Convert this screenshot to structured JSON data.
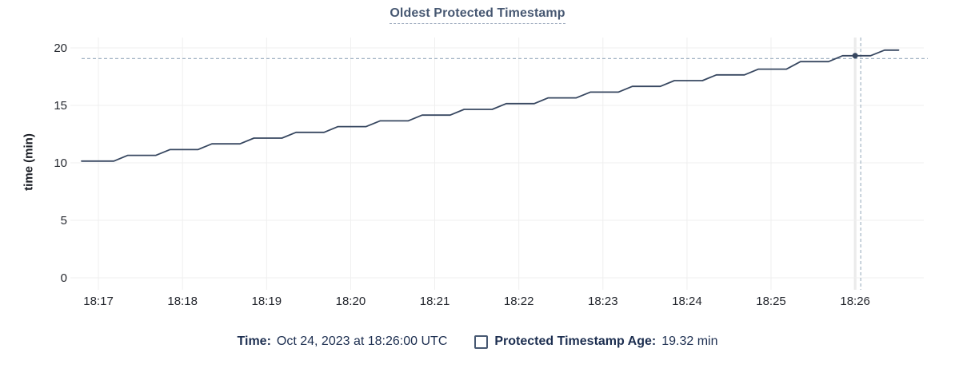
{
  "title": "Oldest Protected Timestamp",
  "y_axis_label": "time (min)",
  "legend": {
    "time_label": "Time:",
    "time_value": "Oct 24, 2023 at 18:26:00 UTC",
    "series_label": "Protected Timestamp Age:",
    "series_value": "19.32 min"
  },
  "colors": {
    "line": "#374760",
    "dot": "#374760",
    "crosshair": "#A3B4C4",
    "gridline": "#efefef",
    "gridline_highlight": "#e8e8e8",
    "tick_text": "#24272e",
    "title_text": "#475872",
    "legend_text": "#1c2e50",
    "checkbox_border": "#475872"
  },
  "chart_data": {
    "type": "line",
    "title": "Oldest Protected Timestamp",
    "xlabel": "",
    "ylabel": "time (min)",
    "x_unit": "seconds since 18:16:48 UTC",
    "xlim": [
      0,
      601
    ],
    "ylim": [
      0,
      20.9
    ],
    "grid": true,
    "yticks": [
      0,
      5,
      10,
      15,
      20
    ],
    "xticks": [
      {
        "t": 12,
        "label": "18:17"
      },
      {
        "t": 72,
        "label": "18:18"
      },
      {
        "t": 132,
        "label": "18:19"
      },
      {
        "t": 192,
        "label": "18:20"
      },
      {
        "t": 252,
        "label": "18:21"
      },
      {
        "t": 312,
        "label": "18:22"
      },
      {
        "t": 372,
        "label": "18:23"
      },
      {
        "t": 432,
        "label": "18:24"
      },
      {
        "t": 492,
        "label": "18:25"
      },
      {
        "t": 552,
        "label": "18:26",
        "highlight": true
      }
    ],
    "series": [
      {
        "name": "Protected Timestamp Age",
        "points": [
          [
            0,
            10.15
          ],
          [
            23,
            10.15
          ],
          [
            33,
            10.65
          ],
          [
            53,
            10.65
          ],
          [
            63,
            11.15
          ],
          [
            83,
            11.15
          ],
          [
            93,
            11.65
          ],
          [
            113,
            11.65
          ],
          [
            123,
            12.15
          ],
          [
            143,
            12.15
          ],
          [
            153,
            12.65
          ],
          [
            173,
            12.65
          ],
          [
            183,
            13.15
          ],
          [
            203,
            13.15
          ],
          [
            213,
            13.65
          ],
          [
            233,
            13.65
          ],
          [
            243,
            14.15
          ],
          [
            263,
            14.15
          ],
          [
            273,
            14.65
          ],
          [
            293,
            14.65
          ],
          [
            303,
            15.15
          ],
          [
            323,
            15.15
          ],
          [
            333,
            15.65
          ],
          [
            353,
            15.65
          ],
          [
            363,
            16.15
          ],
          [
            383,
            16.15
          ],
          [
            393,
            16.65
          ],
          [
            413,
            16.65
          ],
          [
            423,
            17.15
          ],
          [
            443,
            17.15
          ],
          [
            453,
            17.65
          ],
          [
            473,
            17.65
          ],
          [
            483,
            18.15
          ],
          [
            503,
            18.15
          ],
          [
            513,
            18.8
          ],
          [
            533,
            18.8
          ],
          [
            543,
            19.32
          ],
          [
            563,
            19.32
          ],
          [
            573,
            19.8
          ],
          [
            583,
            19.8
          ]
        ]
      }
    ],
    "hover": {
      "t": 552,
      "value": 19.32,
      "crosshair_t": 556,
      "crosshair_value": 19.07,
      "time_text": "Oct 24, 2023 at 18:26:00 UTC",
      "value_text": "19.32 min"
    },
    "legend_position": "bottom"
  }
}
